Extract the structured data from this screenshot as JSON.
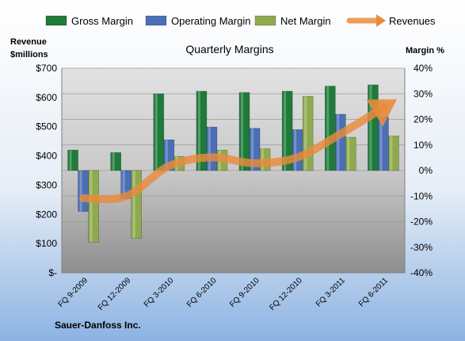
{
  "chart_data": {
    "type": "bar",
    "title": "Quarterly Margins",
    "company": "Sauer-Danfoss Inc.",
    "left_axis": {
      "label_line1": "Revenue",
      "label_line2": "$millions",
      "range": [
        0,
        700
      ],
      "ticks": [
        {
          "value": 0,
          "label": "$-"
        },
        {
          "value": 100,
          "label": "$100"
        },
        {
          "value": 200,
          "label": "$200"
        },
        {
          "value": 300,
          "label": "$300"
        },
        {
          "value": 400,
          "label": "$400"
        },
        {
          "value": 500,
          "label": "$500"
        },
        {
          "value": 600,
          "label": "$600"
        },
        {
          "value": 700,
          "label": "$700"
        }
      ]
    },
    "right_axis": {
      "label": "Margin %",
      "range": [
        -40,
        40
      ],
      "ticks": [
        {
          "value": 40,
          "label": "40%"
        },
        {
          "value": 30,
          "label": "30%"
        },
        {
          "value": 20,
          "label": "20%"
        },
        {
          "value": 10,
          "label": "10%"
        },
        {
          "value": 0,
          "label": "0%"
        },
        {
          "value": -10,
          "label": "-10%"
        },
        {
          "value": -20,
          "label": "-20%"
        },
        {
          "value": -30,
          "label": "-30%"
        },
        {
          "value": -40,
          "label": "-40%"
        }
      ]
    },
    "categories": [
      "FQ 9-2009",
      "FQ 12-2009",
      "FQ 3-2010",
      "FQ 6-2010",
      "FQ 9-2010",
      "FQ 12-2010",
      "FQ 3-2011",
      "FQ 6-2011"
    ],
    "series": [
      {
        "name": "Gross Margin",
        "axis": "right",
        "color": "#1E7B3A",
        "values": [
          8,
          7,
          30,
          31,
          30.5,
          31,
          33,
          33.5
        ]
      },
      {
        "name": "Operating Margin",
        "axis": "right",
        "color": "#4A6FB5",
        "values": [
          -16,
          -11,
          12,
          17,
          16.5,
          16,
          22,
          21
        ]
      },
      {
        "name": "Net Margin",
        "axis": "right",
        "color": "#8FAA4E",
        "values": [
          -28,
          -26.5,
          5.5,
          8,
          8.5,
          29,
          13,
          13.5
        ]
      },
      {
        "name": "Revenues",
        "axis": "left",
        "type": "line",
        "color": "#E98B3C",
        "values": [
          255,
          262,
          365,
          395,
          375,
          395,
          475,
          565
        ]
      }
    ],
    "grid": true,
    "legend_position": "top"
  }
}
